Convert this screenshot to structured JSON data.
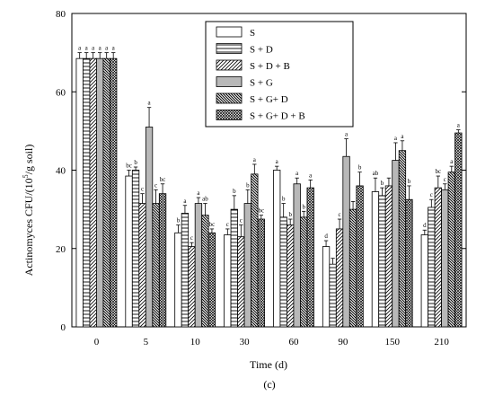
{
  "chart_data": {
    "type": "bar",
    "categories": [
      "0",
      "5",
      "10",
      "30",
      "60",
      "90",
      "150",
      "210"
    ],
    "xlabel": "Time (d)",
    "ylabel_main": "Actinomyces CFU/(10",
    "ylabel_sup": "5",
    "ylabel_tail": "/g soil)",
    "panel_label": "(c)",
    "ylim": [
      0,
      80
    ],
    "yticks": [
      0,
      20,
      40,
      60,
      80
    ],
    "legend_position": "top-center",
    "series": [
      {
        "name": "S",
        "pattern": "white",
        "values": [
          68.5,
          38.5,
          24.0,
          23.5,
          40.0,
          20.5,
          34.5,
          23.5
        ],
        "errors": [
          1.5,
          1.5,
          2.0,
          1.5,
          1.0,
          1.5,
          3.5,
          1.2
        ],
        "letters": [
          "a",
          "bc",
          "b",
          "c",
          "a",
          "d",
          "ab",
          "d"
        ]
      },
      {
        "name": "S + D",
        "pattern": "hlines",
        "values": [
          68.5,
          40.0,
          29.0,
          30.0,
          28.0,
          16.0,
          33.5,
          30.5
        ],
        "errors": [
          1.5,
          0.8,
          2.0,
          3.5,
          3.5,
          1.5,
          2.0,
          2.0
        ],
        "letters": [
          "a",
          "b",
          "a",
          "b",
          "b",
          "",
          "b",
          "c"
        ]
      },
      {
        "name": "S + D + B",
        "pattern": "fwdhatch",
        "values": [
          68.5,
          31.5,
          20.5,
          23.0,
          26.0,
          25.0,
          36.0,
          35.5
        ],
        "errors": [
          1.5,
          2.5,
          1.0,
          3.0,
          1.5,
          2.5,
          2.0,
          3.0
        ],
        "letters": [
          "a",
          "c",
          "c",
          "c",
          "b",
          "c",
          "",
          "bc"
        ]
      },
      {
        "name": "S + G",
        "pattern": "gray",
        "values": [
          68.5,
          51.0,
          31.5,
          31.5,
          36.5,
          43.5,
          42.5,
          35.0
        ],
        "errors": [
          1.5,
          5.0,
          1.5,
          3.5,
          1.5,
          4.5,
          4.5,
          1.5
        ],
        "letters": [
          "a",
          "a",
          "a",
          "b",
          "a",
          "a",
          "a",
          "c"
        ]
      },
      {
        "name": "S + G+ D",
        "pattern": "backhatch",
        "values": [
          68.5,
          31.5,
          28.5,
          39.0,
          28.0,
          30.0,
          45.0,
          39.5
        ],
        "errors": [
          1.5,
          3.5,
          3.0,
          2.5,
          1.5,
          2.0,
          2.5,
          1.5
        ],
        "letters": [
          "a",
          "c",
          "ab",
          "a",
          "b",
          "",
          "a",
          "a"
        ]
      },
      {
        "name": "S + G+ D + B",
        "pattern": "crosshatch",
        "values": [
          68.5,
          34.0,
          24.0,
          27.5,
          35.5,
          36.0,
          32.5,
          49.5
        ],
        "errors": [
          1.5,
          2.5,
          1.0,
          1.0,
          2.0,
          3.5,
          3.5,
          0.8
        ],
        "letters": [
          "a",
          "bc",
          "bc",
          "bc",
          "a",
          "b",
          "b",
          "a"
        ]
      }
    ]
  }
}
